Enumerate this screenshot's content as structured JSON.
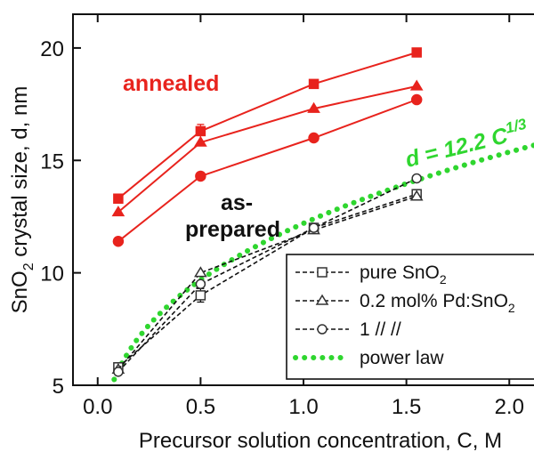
{
  "chart_data": {
    "type": "line",
    "xlabel": "Precursor solution concentration, C, M",
    "ylabel_parts": [
      "SnO",
      "2",
      " crystal size, d, nm"
    ],
    "xlim": [
      -0.12,
      2.12
    ],
    "ylim": [
      5,
      21.5
    ],
    "xticks": [
      0.0,
      0.5,
      1.0,
      1.5,
      2.0
    ],
    "xtick_labels": [
      "0.0",
      "0.5",
      "1.0",
      "1.5",
      "2.0"
    ],
    "yticks": [
      5,
      10,
      15,
      20
    ],
    "ytick_labels": [
      "5",
      "10",
      "15",
      "20"
    ],
    "grid": false,
    "annealed_series": [
      {
        "marker": "square",
        "color": "#e8231d",
        "x": [
          0.1,
          0.5,
          1.05,
          1.55
        ],
        "y": [
          13.3,
          16.3,
          18.4,
          19.8
        ],
        "err": [
          0,
          0.3,
          0,
          0
        ]
      },
      {
        "marker": "triangle",
        "color": "#e8231d",
        "x": [
          0.1,
          0.5,
          1.05,
          1.55
        ],
        "y": [
          12.7,
          15.8,
          17.3,
          18.3
        ]
      },
      {
        "marker": "circle",
        "color": "#e8231d",
        "x": [
          0.1,
          0.5,
          1.05,
          1.55
        ],
        "y": [
          11.4,
          14.3,
          16.0,
          17.7
        ]
      }
    ],
    "asprepared_series": [
      {
        "name": "pure SnO2",
        "marker": "square",
        "x": [
          0.1,
          0.5,
          1.05,
          1.55
        ],
        "y": [
          5.8,
          9.0,
          12.0,
          13.5
        ],
        "err": [
          0.2,
          0.3,
          0.2,
          0.2
        ]
      },
      {
        "name": "0.2 mol% Pd:SnO2",
        "marker": "triangle",
        "x": [
          0.1,
          0.5,
          1.05,
          1.55
        ],
        "y": [
          5.7,
          10.0,
          11.9,
          13.4
        ]
      },
      {
        "name": "1 // //",
        "marker": "circle",
        "x": [
          0.1,
          0.5,
          1.05,
          1.55
        ],
        "y": [
          5.6,
          9.5,
          12.0,
          14.2
        ]
      }
    ],
    "power_law": {
      "name": "power law",
      "coefficient": 12.2,
      "exponent": 0.3333,
      "x_range": [
        0.08,
        2.12
      ],
      "color": "#2fd62f"
    },
    "annotations": {
      "annealed": "annealed",
      "as_prepared_1": "as-",
      "as_prepared_2": "prepared",
      "power_law_label": "d = 12.2 C",
      "power_law_exp": "1/3"
    },
    "legend": [
      {
        "label_parts": [
          "pure SnO",
          "2",
          ""
        ],
        "marker": "square",
        "style": "dash"
      },
      {
        "label_parts": [
          "0.2 mol% Pd:SnO",
          "2",
          ""
        ],
        "marker": "triangle",
        "style": "dash"
      },
      {
        "label_parts": [
          "1      //           //",
          "",
          ""
        ],
        "marker": "circle",
        "style": "dash"
      },
      {
        "label_parts": [
          "power law",
          "",
          ""
        ],
        "marker": "none",
        "style": "dot"
      }
    ],
    "legend_position": "bottom-right"
  }
}
